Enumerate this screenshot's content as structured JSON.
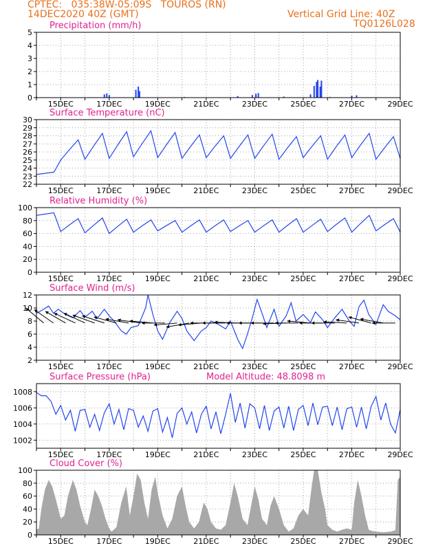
{
  "header": {
    "line1_left": "CPTEC:   035:38W-05:09S   TOUROS (RN)",
    "line2_left": "14DEC2020 40Z (GMT)",
    "line2_right": "Vertical Grid Line: 40Z",
    "line3_right": "TQ0126L028"
  },
  "colors": {
    "header": "#e8701a",
    "title": "#e0208f",
    "series": "#2244ee",
    "cloud": "#a8a8a8",
    "wind_vector": "#000000",
    "grid": "#888888"
  },
  "x_tick_labels": [
    "15DEC",
    "17DEC",
    "19DEC",
    "21DEC",
    "23DEC",
    "25DEC",
    "27DEC",
    "29DEC"
  ],
  "chart_data": [
    {
      "type": "bar",
      "title": "Precipitation (mm/h)",
      "ylim": [
        0,
        5
      ],
      "yticks": [
        "0",
        "1",
        "2",
        "3",
        "4",
        "5"
      ],
      "grid": true,
      "x_range_days": [
        14.0,
        29.0
      ],
      "values": [
        [
          14.0,
          0.06
        ],
        [
          15.0,
          0.03
        ],
        [
          16.8,
          0.25
        ],
        [
          16.9,
          0.32
        ],
        [
          17.0,
          0.2
        ],
        [
          18.1,
          0.6
        ],
        [
          18.2,
          0.85
        ],
        [
          18.25,
          0.5
        ],
        [
          20.1,
          0.05
        ],
        [
          22.3,
          0.12
        ],
        [
          22.9,
          0.2
        ],
        [
          23.05,
          0.3
        ],
        [
          23.15,
          0.35
        ],
        [
          24.2,
          0.08
        ],
        [
          25.3,
          0.25
        ],
        [
          25.45,
          0.9
        ],
        [
          25.55,
          1.2
        ],
        [
          25.6,
          1.35
        ],
        [
          25.7,
          0.85
        ],
        [
          25.75,
          1.3
        ],
        [
          26.1,
          0.05
        ],
        [
          27.0,
          0.15
        ],
        [
          27.2,
          0.18
        ]
      ]
    },
    {
      "type": "line",
      "title": "Surface Temperature (nC)",
      "ylim": [
        22,
        30
      ],
      "yticks": [
        "22",
        "23",
        "24",
        "25",
        "26",
        "27",
        "28",
        "29",
        "30"
      ],
      "grid": true,
      "x_range_days": [
        14.0,
        29.0
      ],
      "daily_max": [
        23.5,
        27.5,
        28.3,
        28.5,
        28.6,
        28.4,
        28.1,
        28.0,
        28.1,
        28.2,
        27.9,
        28.0,
        28.1,
        28.3,
        27.9,
        28.0
      ],
      "daily_min": [
        23.2,
        25.0,
        25.1,
        25.2,
        25.4,
        25.3,
        25.2,
        25.3,
        25.2,
        25.2,
        25.1,
        25.3,
        25.1,
        25.3,
        25.1,
        25.2
      ]
    },
    {
      "type": "line",
      "title": "Relative Humidity (%)",
      "ylim": [
        0,
        100
      ],
      "yticks": [
        "0",
        "20",
        "40",
        "60",
        "80",
        "100"
      ],
      "grid": true,
      "x_range_days": [
        14.0,
        29.0
      ],
      "daily_max": [
        92,
        83,
        84,
        82,
        81,
        80,
        81,
        81,
        80,
        81,
        83,
        82,
        84,
        88,
        83,
        80
      ],
      "daily_min": [
        88,
        63,
        61,
        60,
        62,
        64,
        62,
        62,
        63,
        62,
        62,
        62,
        63,
        62,
        64,
        62
      ]
    },
    {
      "type": "line",
      "title": "Surface Wind (m/s)",
      "ylim": [
        2,
        12
      ],
      "yticks": [
        "2",
        "4",
        "6",
        "8",
        "10",
        "12"
      ],
      "grid": true,
      "x_range_days": [
        14.0,
        29.0
      ],
      "speed_points": [
        [
          14.0,
          9.2
        ],
        [
          14.3,
          9.8
        ],
        [
          14.5,
          10.3
        ],
        [
          14.7,
          9.2
        ],
        [
          14.9,
          9.8
        ],
        [
          15.2,
          9.0
        ],
        [
          15.5,
          8.5
        ],
        [
          15.8,
          9.6
        ],
        [
          16.0,
          8.6
        ],
        [
          16.3,
          9.5
        ],
        [
          16.5,
          8.4
        ],
        [
          16.8,
          9.8
        ],
        [
          17.0,
          8.8
        ],
        [
          17.2,
          8.0
        ],
        [
          17.5,
          6.5
        ],
        [
          17.7,
          6.0
        ],
        [
          17.9,
          7.0
        ],
        [
          18.2,
          7.3
        ],
        [
          18.5,
          10.0
        ],
        [
          18.6,
          12.0
        ],
        [
          18.8,
          9.0
        ],
        [
          19.0,
          6.5
        ],
        [
          19.2,
          5.2
        ],
        [
          19.5,
          7.8
        ],
        [
          19.8,
          9.5
        ],
        [
          20.0,
          8.4
        ],
        [
          20.2,
          6.5
        ],
        [
          20.5,
          5.0
        ],
        [
          20.8,
          6.5
        ],
        [
          21.0,
          7.0
        ],
        [
          21.2,
          8.0
        ],
        [
          21.5,
          7.5
        ],
        [
          21.8,
          6.8
        ],
        [
          22.0,
          8.0
        ],
        [
          22.3,
          5.2
        ],
        [
          22.5,
          3.8
        ],
        [
          22.7,
          6.0
        ],
        [
          22.9,
          8.5
        ],
        [
          23.1,
          11.3
        ],
        [
          23.3,
          9.2
        ],
        [
          23.5,
          7.0
        ],
        [
          23.8,
          9.8
        ],
        [
          24.0,
          7.2
        ],
        [
          24.3,
          8.8
        ],
        [
          24.5,
          10.8
        ],
        [
          24.7,
          8.0
        ],
        [
          25.0,
          9.0
        ],
        [
          25.3,
          7.8
        ],
        [
          25.5,
          9.4
        ],
        [
          25.8,
          8.2
        ],
        [
          26.0,
          7.0
        ],
        [
          26.3,
          8.5
        ],
        [
          26.6,
          9.8
        ],
        [
          26.9,
          8.0
        ],
        [
          27.1,
          7.2
        ],
        [
          27.3,
          10.2
        ],
        [
          27.5,
          11.2
        ],
        [
          27.7,
          9.0
        ],
        [
          28.0,
          7.5
        ],
        [
          28.3,
          10.5
        ],
        [
          28.5,
          9.5
        ],
        [
          28.8,
          8.8
        ],
        [
          29.0,
          8.2
        ]
      ],
      "wind_vectors": [
        [
          14.3,
          -40
        ],
        [
          14.7,
          -35
        ],
        [
          15.2,
          -30
        ],
        [
          15.6,
          -25
        ],
        [
          16.0,
          -25
        ],
        [
          16.4,
          -20
        ],
        [
          16.8,
          -18
        ],
        [
          17.3,
          -15
        ],
        [
          17.8,
          -10
        ],
        [
          18.3,
          -8
        ],
        [
          18.8,
          -5
        ],
        [
          19.3,
          0
        ],
        [
          19.8,
          5
        ],
        [
          20.3,
          10
        ],
        [
          20.8,
          5
        ],
        [
          21.3,
          0
        ],
        [
          21.8,
          0
        ],
        [
          22.3,
          -2
        ],
        [
          22.8,
          0
        ],
        [
          23.3,
          0
        ],
        [
          23.8,
          0
        ],
        [
          24.3,
          2
        ],
        [
          24.8,
          0
        ],
        [
          25.3,
          -5
        ],
        [
          25.8,
          0
        ],
        [
          26.3,
          0
        ],
        [
          26.8,
          -3
        ],
        [
          27.3,
          -8
        ],
        [
          27.8,
          -15
        ],
        [
          28.3,
          -10
        ],
        [
          28.8,
          0
        ]
      ]
    },
    {
      "type": "line",
      "title": "Surface Pressure (hPa)",
      "annotation": "Model Altitude: 48.8098 m",
      "ylim": [
        1001,
        1009
      ],
      "yticks": [
        "1002",
        "1004",
        "1006",
        "1008"
      ],
      "grid": true,
      "x_range_days": [
        14.0,
        29.0
      ],
      "points": [
        [
          14.0,
          1007.9
        ],
        [
          14.2,
          1007.5
        ],
        [
          14.4,
          1007.5
        ],
        [
          14.6,
          1006.8
        ],
        [
          14.8,
          1005.2
        ],
        [
          15.0,
          1006.3
        ],
        [
          15.2,
          1004.5
        ],
        [
          15.4,
          1005.7
        ],
        [
          15.6,
          1003.1
        ],
        [
          15.8,
          1005.7
        ],
        [
          16.0,
          1005.8
        ],
        [
          16.2,
          1003.6
        ],
        [
          16.4,
          1005.2
        ],
        [
          16.6,
          1003.2
        ],
        [
          16.8,
          1005.4
        ],
        [
          17.0,
          1006.5
        ],
        [
          17.2,
          1004.0
        ],
        [
          17.4,
          1005.8
        ],
        [
          17.6,
          1003.3
        ],
        [
          17.8,
          1005.9
        ],
        [
          18.0,
          1005.7
        ],
        [
          18.2,
          1003.6
        ],
        [
          18.4,
          1005.0
        ],
        [
          18.6,
          1003.1
        ],
        [
          18.8,
          1005.6
        ],
        [
          19.0,
          1005.9
        ],
        [
          19.2,
          1003.0
        ],
        [
          19.4,
          1004.8
        ],
        [
          19.6,
          1002.3
        ],
        [
          19.8,
          1005.3
        ],
        [
          20.0,
          1006.0
        ],
        [
          20.2,
          1004.0
        ],
        [
          20.4,
          1005.5
        ],
        [
          20.6,
          1002.9
        ],
        [
          20.8,
          1005.2
        ],
        [
          21.0,
          1006.2
        ],
        [
          21.2,
          1003.4
        ],
        [
          21.4,
          1005.5
        ],
        [
          21.6,
          1002.8
        ],
        [
          21.8,
          1005.2
        ],
        [
          22.0,
          1007.8
        ],
        [
          22.2,
          1004.2
        ],
        [
          22.4,
          1006.6
        ],
        [
          22.6,
          1003.5
        ],
        [
          22.8,
          1006.5
        ],
        [
          23.0,
          1006.0
        ],
        [
          23.2,
          1003.4
        ],
        [
          23.4,
          1006.3
        ],
        [
          23.6,
          1003.2
        ],
        [
          23.8,
          1005.6
        ],
        [
          24.0,
          1006.1
        ],
        [
          24.2,
          1003.5
        ],
        [
          24.4,
          1006.2
        ],
        [
          24.6,
          1003.2
        ],
        [
          24.8,
          1005.8
        ],
        [
          25.0,
          1006.3
        ],
        [
          25.2,
          1003.8
        ],
        [
          25.4,
          1006.6
        ],
        [
          25.6,
          1003.9
        ],
        [
          25.8,
          1006.1
        ],
        [
          26.0,
          1006.2
        ],
        [
          26.2,
          1003.8
        ],
        [
          26.4,
          1006.1
        ],
        [
          26.6,
          1003.3
        ],
        [
          26.8,
          1005.9
        ],
        [
          27.0,
          1006.1
        ],
        [
          27.2,
          1003.6
        ],
        [
          27.4,
          1006.1
        ],
        [
          27.6,
          1003.4
        ],
        [
          27.8,
          1006.2
        ],
        [
          28.0,
          1007.4
        ],
        [
          28.2,
          1004.5
        ],
        [
          28.4,
          1006.6
        ],
        [
          28.6,
          1004.0
        ],
        [
          28.8,
          1002.9
        ],
        [
          29.0,
          1005.8
        ]
      ]
    },
    {
      "type": "area",
      "title": "Cloud Cover (%)",
      "ylim": [
        0,
        100
      ],
      "yticks": [
        "0",
        "20",
        "40",
        "60",
        "80",
        "100"
      ],
      "grid": true,
      "x_range_days": [
        14.0,
        29.0
      ],
      "points": [
        [
          14.0,
          8
        ],
        [
          14.1,
          10
        ],
        [
          14.2,
          40
        ],
        [
          14.35,
          70
        ],
        [
          14.5,
          85
        ],
        [
          14.65,
          75
        ],
        [
          14.8,
          55
        ],
        [
          15.0,
          25
        ],
        [
          15.15,
          30
        ],
        [
          15.3,
          60
        ],
        [
          15.5,
          85
        ],
        [
          15.65,
          70
        ],
        [
          15.8,
          45
        ],
        [
          16.0,
          20
        ],
        [
          16.1,
          15
        ],
        [
          16.25,
          40
        ],
        [
          16.4,
          70
        ],
        [
          16.55,
          60
        ],
        [
          16.7,
          45
        ],
        [
          16.85,
          25
        ],
        [
          17.0,
          10
        ],
        [
          17.1,
          5
        ],
        [
          17.3,
          12
        ],
        [
          17.5,
          50
        ],
        [
          17.7,
          75
        ],
        [
          17.85,
          30
        ],
        [
          18.0,
          60
        ],
        [
          18.15,
          95
        ],
        [
          18.3,
          85
        ],
        [
          18.45,
          50
        ],
        [
          18.6,
          25
        ],
        [
          18.75,
          70
        ],
        [
          18.9,
          90
        ],
        [
          19.0,
          65
        ],
        [
          19.2,
          30
        ],
        [
          19.4,
          10
        ],
        [
          19.6,
          25
        ],
        [
          19.8,
          60
        ],
        [
          20.0,
          75
        ],
        [
          20.15,
          45
        ],
        [
          20.3,
          20
        ],
        [
          20.5,
          10
        ],
        [
          20.7,
          20
        ],
        [
          20.9,
          50
        ],
        [
          21.05,
          40
        ],
        [
          21.2,
          20
        ],
        [
          21.4,
          10
        ],
        [
          21.6,
          8
        ],
        [
          21.8,
          15
        ],
        [
          22.0,
          50
        ],
        [
          22.15,
          80
        ],
        [
          22.3,
          60
        ],
        [
          22.5,
          25
        ],
        [
          22.7,
          15
        ],
        [
          22.85,
          45
        ],
        [
          23.0,
          75
        ],
        [
          23.15,
          55
        ],
        [
          23.3,
          25
        ],
        [
          23.5,
          15
        ],
        [
          23.65,
          45
        ],
        [
          23.8,
          60
        ],
        [
          24.0,
          40
        ],
        [
          24.2,
          15
        ],
        [
          24.4,
          5
        ],
        [
          24.6,
          10
        ],
        [
          24.8,
          30
        ],
        [
          25.0,
          40
        ],
        [
          25.2,
          30
        ],
        [
          25.35,
          75
        ],
        [
          25.45,
          100
        ],
        [
          25.6,
          100
        ],
        [
          25.75,
          65
        ],
        [
          25.9,
          40
        ],
        [
          26.0,
          15
        ],
        [
          26.2,
          8
        ],
        [
          26.4,
          5
        ],
        [
          26.6,
          8
        ],
        [
          26.8,
          10
        ],
        [
          27.0,
          8
        ],
        [
          27.1,
          50
        ],
        [
          27.25,
          85
        ],
        [
          27.4,
          60
        ],
        [
          27.55,
          30
        ],
        [
          27.7,
          8
        ],
        [
          27.85,
          6
        ],
        [
          28.0,
          5
        ],
        [
          28.3,
          4
        ],
        [
          28.6,
          5
        ],
        [
          28.8,
          7
        ],
        [
          28.9,
          85
        ],
        [
          29.0,
          90
        ]
      ]
    }
  ]
}
